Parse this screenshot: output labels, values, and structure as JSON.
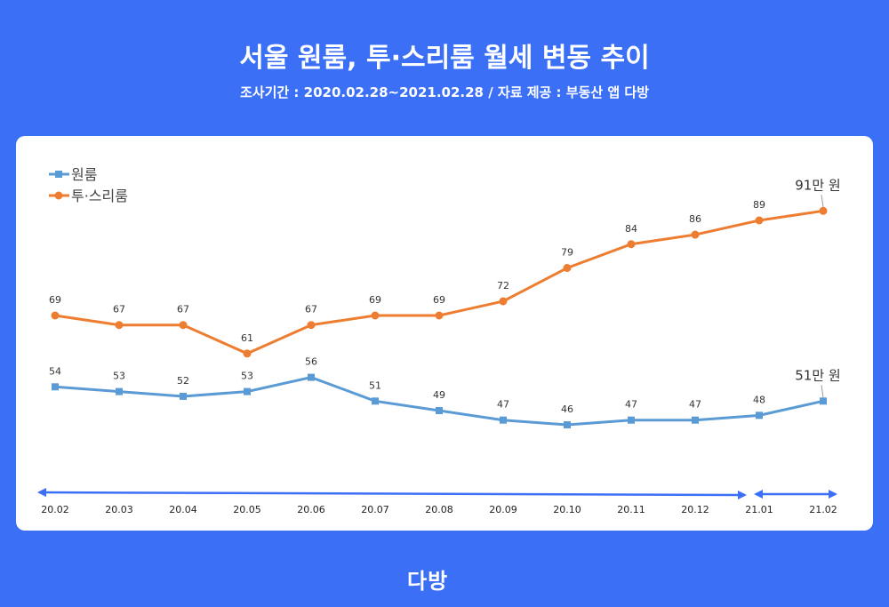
{
  "title": "서울 원룸, 투·스리룸 월세 변동 추이",
  "subtitle": "조사기간 : 2020.02.28~2021.02.28 / 자료 제공 : 부동산 앱 다방",
  "logo": "다방",
  "chart_data": {
    "type": "line",
    "categories": [
      "20.02",
      "20.03",
      "20.04",
      "20.05",
      "20.06",
      "20.07",
      "20.08",
      "20.09",
      "20.10",
      "20.11",
      "20.12",
      "21.01",
      "21.02"
    ],
    "series": [
      {
        "name": "원룸",
        "color": "#5b9bd5",
        "marker": "square",
        "values": [
          54,
          53,
          52,
          53,
          56,
          51,
          49,
          47,
          46,
          47,
          47,
          48,
          51
        ],
        "end_label": "51만 원"
      },
      {
        "name": "투·스리룸",
        "color": "#ed7d31",
        "marker": "circle",
        "values": [
          69,
          67,
          67,
          61,
          67,
          69,
          69,
          72,
          79,
          84,
          86,
          89,
          91
        ],
        "end_label": "91만 원"
      }
    ],
    "legend": "top-left",
    "grid": false
  }
}
